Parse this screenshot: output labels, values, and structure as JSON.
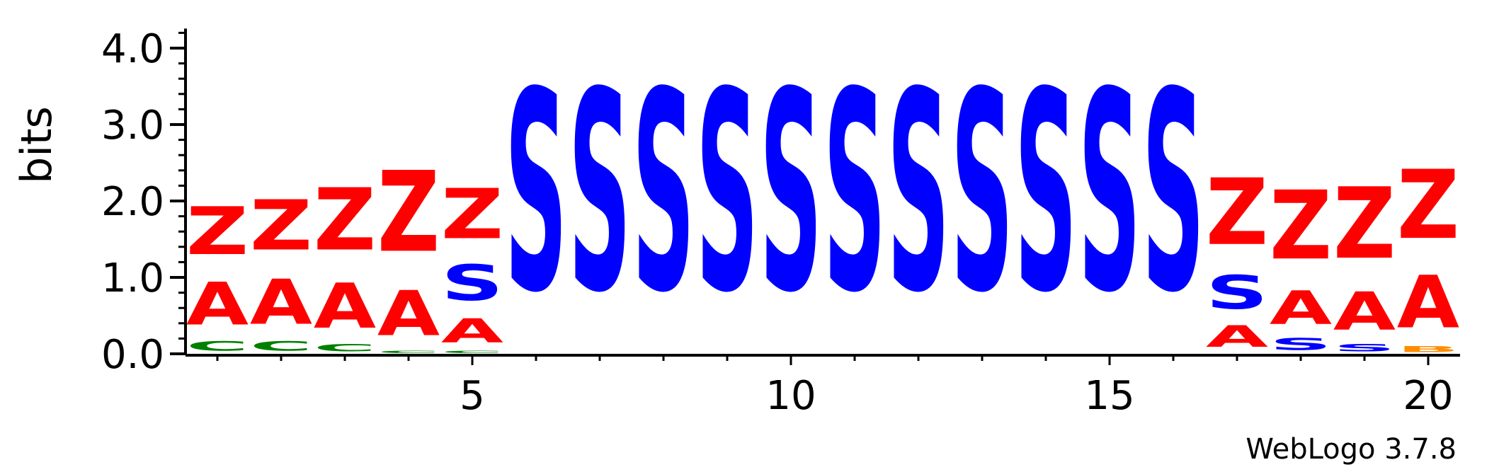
{
  "footer": {
    "credit": "WebLogo 3.7.8"
  },
  "colors": {
    "Z": "#ff0000",
    "A": "#ff0000",
    "S": "#0000ff",
    "C": "#008000",
    "B": "#ff8c00",
    "axis": "#000000"
  },
  "chart_data": {
    "type": "sequence-logo",
    "title": "",
    "ylabel": "bits",
    "xlabel": "",
    "ylim": [
      0,
      4.2
    ],
    "xlim": [
      0.5,
      20.5
    ],
    "yticks": [
      {
        "value": 0,
        "label": "0.0"
      },
      {
        "value": 1,
        "label": "1.0"
      },
      {
        "value": 2,
        "label": "2.0"
      },
      {
        "value": 3,
        "label": "3.0"
      },
      {
        "value": 4,
        "label": "4.0"
      }
    ],
    "xticks": [
      {
        "value": 5,
        "label": "5"
      },
      {
        "value": 10,
        "label": "10"
      },
      {
        "value": 15,
        "label": "15"
      },
      {
        "value": 20,
        "label": "20"
      }
    ],
    "positions": [
      {
        "pos": 1,
        "stack": [
          {
            "letter": "C",
            "bits": 0.2
          },
          {
            "letter": "A",
            "bits": 0.9
          },
          {
            "letter": "Z",
            "bits": 1.0
          }
        ]
      },
      {
        "pos": 2,
        "stack": [
          {
            "letter": "C",
            "bits": 0.2
          },
          {
            "letter": "A",
            "bits": 0.95
          },
          {
            "letter": "Z",
            "bits": 1.05
          }
        ]
      },
      {
        "pos": 3,
        "stack": [
          {
            "letter": "C",
            "bits": 0.15
          },
          {
            "letter": "A",
            "bits": 0.95
          },
          {
            "letter": "Z",
            "bits": 1.3
          }
        ]
      },
      {
        "pos": 4,
        "stack": [
          {
            "letter": "C",
            "bits": 0.05
          },
          {
            "letter": "A",
            "bits": 0.95
          },
          {
            "letter": "Z",
            "bits": 1.7
          }
        ]
      },
      {
        "pos": 5,
        "stack": [
          {
            "letter": "C",
            "bits": 0.05
          },
          {
            "letter": "A",
            "bits": 0.5
          },
          {
            "letter": "S",
            "bits": 0.75
          },
          {
            "letter": "Z",
            "bits": 1.05
          }
        ]
      },
      {
        "pos": 6,
        "stack": [
          {
            "letter": "S",
            "bits": 4.2
          }
        ]
      },
      {
        "pos": 7,
        "stack": [
          {
            "letter": "S",
            "bits": 4.2
          }
        ]
      },
      {
        "pos": 8,
        "stack": [
          {
            "letter": "S",
            "bits": 4.2
          }
        ]
      },
      {
        "pos": 9,
        "stack": [
          {
            "letter": "S",
            "bits": 4.2
          }
        ]
      },
      {
        "pos": 10,
        "stack": [
          {
            "letter": "S",
            "bits": 4.2
          }
        ]
      },
      {
        "pos": 11,
        "stack": [
          {
            "letter": "S",
            "bits": 4.2
          }
        ]
      },
      {
        "pos": 12,
        "stack": [
          {
            "letter": "S",
            "bits": 4.2
          }
        ]
      },
      {
        "pos": 13,
        "stack": [
          {
            "letter": "S",
            "bits": 4.2
          }
        ]
      },
      {
        "pos": 14,
        "stack": [
          {
            "letter": "S",
            "bits": 4.2
          }
        ]
      },
      {
        "pos": 15,
        "stack": [
          {
            "letter": "S",
            "bits": 4.2
          }
        ]
      },
      {
        "pos": 16,
        "stack": [
          {
            "letter": "S",
            "bits": 4.2
          }
        ]
      },
      {
        "pos": 17,
        "stack": [
          {
            "letter": "A",
            "bits": 0.45
          },
          {
            "letter": "S",
            "bits": 0.7
          },
          {
            "letter": "Z",
            "bits": 1.4
          }
        ]
      },
      {
        "pos": 18,
        "stack": [
          {
            "letter": "S",
            "bits": 0.25
          },
          {
            "letter": "A",
            "bits": 0.7
          },
          {
            "letter": "Z",
            "bits": 1.45
          }
        ]
      },
      {
        "pos": 19,
        "stack": [
          {
            "letter": "S",
            "bits": 0.15
          },
          {
            "letter": "A",
            "bits": 0.8
          },
          {
            "letter": "Z",
            "bits": 1.5
          }
        ]
      },
      {
        "pos": 20,
        "stack": [
          {
            "letter": "B",
            "bits": 0.12
          },
          {
            "letter": "A",
            "bits": 1.1
          },
          {
            "letter": "Z",
            "bits": 1.45
          }
        ]
      }
    ]
  }
}
